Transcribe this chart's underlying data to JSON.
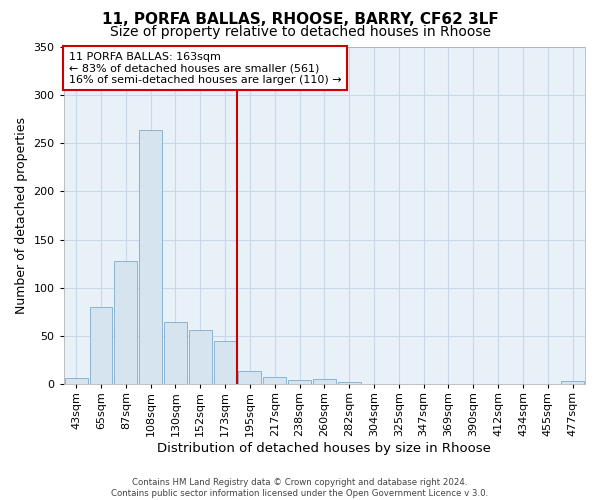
{
  "title": "11, PORFA BALLAS, RHOOSE, BARRY, CF62 3LF",
  "subtitle": "Size of property relative to detached houses in Rhoose",
  "xlabel": "Distribution of detached houses by size in Rhoose",
  "ylabel": "Number of detached properties",
  "categories": [
    "43sqm",
    "65sqm",
    "87sqm",
    "108sqm",
    "130sqm",
    "152sqm",
    "173sqm",
    "195sqm",
    "217sqm",
    "238sqm",
    "260sqm",
    "282sqm",
    "304sqm",
    "325sqm",
    "347sqm",
    "369sqm",
    "390sqm",
    "412sqm",
    "434sqm",
    "455sqm",
    "477sqm"
  ],
  "values": [
    7,
    80,
    128,
    263,
    65,
    56,
    45,
    14,
    8,
    5,
    6,
    2,
    0,
    0,
    0,
    0,
    0,
    0,
    0,
    0,
    3
  ],
  "bar_color": "#d6e4f0",
  "bar_edge_color": "#8ab4d4",
  "vline_position": 6.5,
  "vline_color": "#cc0000",
  "annotation_text": "11 PORFA BALLAS: 163sqm\n← 83% of detached houses are smaller (561)\n16% of semi-detached houses are larger (110) →",
  "annotation_box_color": "#ffffff",
  "annotation_box_edge_color": "#cc0000",
  "ylim": [
    0,
    350
  ],
  "yticks": [
    0,
    50,
    100,
    150,
    200,
    250,
    300,
    350
  ],
  "title_fontsize": 11,
  "subtitle_fontsize": 10,
  "xlabel_fontsize": 9.5,
  "ylabel_fontsize": 9,
  "tick_fontsize": 8,
  "grid_color": "#c8d8e8",
  "background_color": "#e8f0f8",
  "footer_text": "Contains HM Land Registry data © Crown copyright and database right 2024.\nContains public sector information licensed under the Open Government Licence v 3.0."
}
